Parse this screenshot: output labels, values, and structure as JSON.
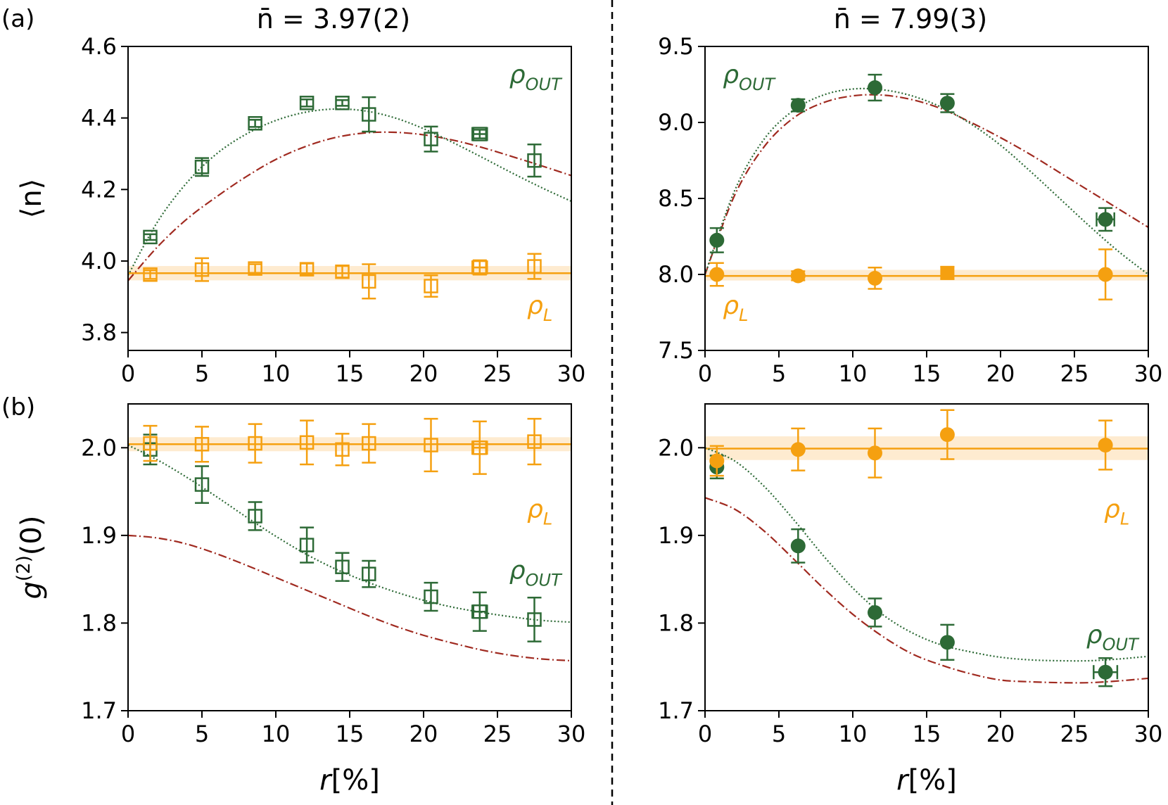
{
  "panel_tags": {
    "a": "(a)",
    "b": "(b)"
  },
  "column_titles": [
    "n̄ = 3.97(2)",
    "n̄ = 7.99(3)"
  ],
  "ylabels": {
    "top": "⟨n⟩",
    "bottom": "g(2)(0)"
  },
  "xlabel": "r[%]",
  "series_labels": {
    "out_main": "ρ",
    "out_sub": "OUT",
    "l_main": "ρ",
    "l_sub": "L"
  },
  "colors": {
    "out": "#2d6a36",
    "l": "#f5a010",
    "theory": "#a02a20",
    "band": "#fde4c0"
  },
  "chart_data": [
    {
      "id": "top-left",
      "type": "scatter",
      "title": "n̄ = 3.97(2)",
      "xlabel": "",
      "ylabel": "⟨n⟩",
      "xlim": [
        0,
        30
      ],
      "ylim": [
        3.75,
        4.6
      ],
      "xticks": [
        "0",
        "5",
        "10",
        "15",
        "20",
        "25",
        "30"
      ],
      "yticks": [
        "3.8",
        "4.0",
        "4.2",
        "4.4",
        "4.6"
      ],
      "marker": "open-square",
      "series": [
        {
          "name": "ρOUT",
          "x": [
            1.5,
            5.0,
            8.6,
            12.1,
            14.5,
            16.3,
            20.5,
            23.8,
            27.5
          ],
          "y": [
            4.067,
            4.263,
            4.385,
            4.442,
            4.442,
            4.41,
            4.341,
            4.355,
            4.281
          ],
          "yerr": [
            0.008,
            0.025,
            0.01,
            0.01,
            0.008,
            0.048,
            0.035,
            0.012,
            0.045
          ],
          "xerr": [
            0,
            0,
            0,
            0,
            0,
            0,
            0,
            0.5,
            0
          ]
        },
        {
          "name": "ρL",
          "x": [
            1.5,
            5.0,
            8.6,
            12.1,
            14.5,
            16.3,
            20.5,
            23.8,
            27.5
          ],
          "y": [
            3.962,
            3.976,
            3.979,
            3.977,
            3.97,
            3.943,
            3.93,
            3.982,
            3.985
          ],
          "yerr": [
            0.012,
            0.032,
            0.012,
            0.016,
            0.016,
            0.048,
            0.03,
            0.02,
            0.035
          ],
          "xerr": [
            0,
            0,
            0,
            0,
            0,
            0,
            0,
            0.5,
            0
          ]
        }
      ],
      "reference_line": {
        "y": 3.966,
        "band": [
          3.946,
          3.986
        ]
      },
      "fit_curve": {
        "x": [
          0,
          2,
          4,
          6,
          8,
          10,
          12,
          14,
          16,
          18,
          20,
          22,
          24,
          26,
          28,
          30
        ],
        "y": [
          3.96,
          4.11,
          4.22,
          4.3,
          4.355,
          4.393,
          4.416,
          4.425,
          4.42,
          4.401,
          4.37,
          4.331,
          4.289,
          4.246,
          4.205,
          4.167
        ]
      },
      "theory_curve": {
        "x": [
          0,
          2,
          4,
          6,
          8,
          10,
          12,
          14,
          16,
          18,
          20,
          22,
          24,
          26,
          28,
          30
        ],
        "y": [
          3.945,
          4.04,
          4.118,
          4.18,
          4.236,
          4.284,
          4.32,
          4.345,
          4.358,
          4.36,
          4.353,
          4.338,
          4.317,
          4.292,
          4.266,
          4.239
        ]
      }
    },
    {
      "id": "top-right",
      "type": "scatter",
      "title": "n̄ = 7.99(3)",
      "xlabel": "",
      "ylabel": "",
      "xlim": [
        0,
        30
      ],
      "ylim": [
        7.5,
        9.5
      ],
      "xticks": [
        "0",
        "5",
        "10",
        "15",
        "20",
        "25",
        "30"
      ],
      "yticks": [
        "7.5",
        "8.0",
        "8.5",
        "9.0",
        "9.5"
      ],
      "marker": "filled-circle",
      "series": [
        {
          "name": "ρOUT",
          "x": [
            0.8,
            6.3,
            11.5,
            16.4,
            27.1
          ],
          "y": [
            8.225,
            9.113,
            9.229,
            9.127,
            8.362
          ],
          "yerr": [
            0.08,
            0.04,
            0.085,
            0.06,
            0.075
          ],
          "xerr": [
            0,
            0,
            0,
            0,
            0.6
          ]
        },
        {
          "name": "ρL",
          "x": [
            0.8,
            6.3,
            11.5,
            16.4,
            27.1
          ],
          "y": [
            8.0,
            7.991,
            7.975,
            8.01,
            8.0
          ],
          "yerr": [
            0.075,
            0.03,
            0.07,
            0.04,
            0.165
          ],
          "xerr": [
            0,
            0,
            0,
            0,
            0
          ]
        }
      ],
      "reference_line": {
        "y": 7.99,
        "band": [
          7.96,
          8.03
        ]
      },
      "fit_curve": {
        "x": [
          0,
          2,
          4,
          6,
          8,
          10,
          12,
          14,
          16,
          18,
          20,
          22,
          24,
          26,
          28,
          30
        ],
        "y": [
          8.0,
          8.55,
          8.89,
          9.08,
          9.18,
          9.22,
          9.215,
          9.175,
          9.1,
          8.99,
          8.85,
          8.68,
          8.5,
          8.32,
          8.15,
          8.0
        ]
      },
      "theory_curve": {
        "x": [
          0,
          2,
          4,
          6,
          8,
          10,
          12,
          14,
          16,
          18,
          20,
          22,
          24,
          26,
          28,
          30
        ],
        "y": [
          8.0,
          8.52,
          8.84,
          9.03,
          9.13,
          9.175,
          9.18,
          9.15,
          9.09,
          9.0,
          8.9,
          8.79,
          8.67,
          8.55,
          8.43,
          8.31
        ]
      }
    },
    {
      "id": "bottom-left",
      "type": "scatter",
      "title": "",
      "xlabel": "r[%]",
      "ylabel": "g(2)(0)",
      "xlim": [
        0,
        30
      ],
      "ylim": [
        1.7,
        2.05
      ],
      "xticks": [
        "0",
        "5",
        "10",
        "15",
        "20",
        "25",
        "30"
      ],
      "yticks": [
        "1.7",
        "1.8",
        "1.9",
        "2.0"
      ],
      "marker": "open-square",
      "series": [
        {
          "name": "ρOUT",
          "x": [
            1.5,
            5.0,
            8.6,
            12.1,
            14.5,
            16.3,
            20.5,
            23.8,
            27.5
          ],
          "y": [
            1.998,
            1.958,
            1.922,
            1.889,
            1.864,
            1.856,
            1.83,
            1.813,
            1.804
          ],
          "yerr": [
            0.017,
            0.021,
            0.016,
            0.02,
            0.016,
            0.015,
            0.016,
            0.022,
            0.025
          ],
          "xerr": [
            0,
            0,
            0,
            0,
            0,
            0,
            0,
            0.5,
            0
          ]
        },
        {
          "name": "ρL",
          "x": [
            1.5,
            5.0,
            8.6,
            12.1,
            14.5,
            16.3,
            20.5,
            23.8,
            27.5
          ],
          "y": [
            2.005,
            2.004,
            2.005,
            2.006,
            1.998,
            2.005,
            2.003,
            2.0,
            2.007
          ],
          "yerr": [
            0.02,
            0.02,
            0.022,
            0.025,
            0.018,
            0.022,
            0.03,
            0.03,
            0.026
          ],
          "xerr": [
            0,
            0,
            0,
            0,
            0,
            0,
            0,
            0.5,
            0
          ]
        }
      ],
      "reference_line": {
        "y": 2.004,
        "band": [
          1.996,
          2.012
        ]
      },
      "fit_curve": {
        "x": [
          0,
          2,
          4,
          6,
          8,
          10,
          12,
          14,
          16,
          18,
          20,
          22,
          24,
          26,
          28,
          30
        ],
        "y": [
          2.003,
          1.986,
          1.966,
          1.944,
          1.921,
          1.899,
          1.879,
          1.862,
          1.848,
          1.836,
          1.826,
          1.818,
          1.812,
          1.807,
          1.803,
          1.801
        ]
      },
      "theory_curve": {
        "x": [
          0,
          2,
          4,
          6,
          8,
          10,
          12,
          14,
          16,
          18,
          20,
          22,
          24,
          26,
          28,
          30
        ],
        "y": [
          1.9,
          1.897,
          1.89,
          1.879,
          1.866,
          1.852,
          1.838,
          1.824,
          1.81,
          1.797,
          1.786,
          1.777,
          1.769,
          1.763,
          1.759,
          1.757
        ]
      }
    },
    {
      "id": "bottom-right",
      "type": "scatter",
      "title": "",
      "xlabel": "r[%]",
      "ylabel": "",
      "xlim": [
        0,
        30
      ],
      "ylim": [
        1.7,
        2.05
      ],
      "xticks": [
        "0",
        "5",
        "10",
        "15",
        "20",
        "25",
        "30"
      ],
      "yticks": [
        "1.7",
        "1.8",
        "1.9",
        "2.0"
      ],
      "marker": "filled-circle",
      "series": [
        {
          "name": "ρOUT",
          "x": [
            0.8,
            6.3,
            11.5,
            16.4,
            27.1
          ],
          "y": [
            1.978,
            1.888,
            1.812,
            1.778,
            1.744
          ],
          "yerr": [
            0.013,
            0.019,
            0.016,
            0.02,
            0.016
          ],
          "xerr": [
            0,
            0,
            0,
            0,
            0.8
          ]
        },
        {
          "name": "ρL",
          "x": [
            0.8,
            6.3,
            11.5,
            16.4,
            27.1
          ],
          "y": [
            1.985,
            1.998,
            1.994,
            2.015,
            2.003
          ],
          "yerr": [
            0.017,
            0.024,
            0.028,
            0.028,
            0.028
          ],
          "xerr": [
            0,
            0,
            0,
            0,
            0
          ]
        }
      ],
      "reference_line": {
        "y": 1.999,
        "band": [
          1.986,
          2.013
        ]
      },
      "fit_curve": {
        "x": [
          0,
          2,
          4,
          6,
          8,
          10,
          12,
          14,
          16,
          18,
          20,
          22,
          24,
          26,
          28,
          30
        ],
        "y": [
          2.0,
          1.985,
          1.956,
          1.918,
          1.877,
          1.84,
          1.81,
          1.789,
          1.775,
          1.767,
          1.761,
          1.758,
          1.757,
          1.757,
          1.759,
          1.762
        ]
      },
      "theory_curve": {
        "x": [
          0,
          2,
          4,
          6,
          8,
          10,
          12,
          14,
          16,
          18,
          20,
          22,
          24,
          26,
          28,
          30
        ],
        "y": [
          1.943,
          1.93,
          1.905,
          1.873,
          1.84,
          1.81,
          1.785,
          1.765,
          1.752,
          1.742,
          1.735,
          1.733,
          1.732,
          1.732,
          1.734,
          1.737
        ]
      }
    }
  ]
}
